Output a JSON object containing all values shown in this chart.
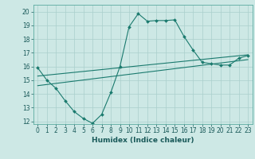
{
  "xlabel": "Humidex (Indice chaleur)",
  "xlim": [
    -0.5,
    23.5
  ],
  "ylim": [
    11.8,
    20.5
  ],
  "xticks": [
    0,
    1,
    2,
    3,
    4,
    5,
    6,
    7,
    8,
    9,
    10,
    11,
    12,
    13,
    14,
    15,
    16,
    17,
    18,
    19,
    20,
    21,
    22,
    23
  ],
  "yticks": [
    12,
    13,
    14,
    15,
    16,
    17,
    18,
    19,
    20
  ],
  "background_color": "#cde8e5",
  "grid_color": "#aacfcc",
  "line_color": "#1a7a6e",
  "line1_x": [
    0,
    1,
    2,
    3,
    4,
    5,
    6,
    7,
    8,
    9,
    10,
    11,
    12,
    13,
    14,
    15,
    16,
    17,
    18,
    19,
    20,
    21,
    22,
    23
  ],
  "line1_y": [
    15.9,
    15.0,
    14.4,
    13.5,
    12.7,
    12.2,
    11.85,
    12.5,
    14.1,
    16.0,
    18.9,
    19.85,
    19.3,
    19.35,
    19.35,
    19.4,
    18.2,
    17.2,
    16.3,
    16.2,
    16.1,
    16.1,
    16.6,
    16.8
  ],
  "line2_x": [
    0,
    23
  ],
  "line2_y": [
    14.6,
    16.5
  ],
  "line3_x": [
    0,
    23
  ],
  "line3_y": [
    15.3,
    16.85
  ],
  "marker_x": [
    0,
    1,
    2,
    3,
    4,
    5,
    6,
    7,
    8,
    9,
    10,
    11,
    12,
    13,
    14,
    15,
    16,
    17,
    18,
    19,
    20,
    21,
    22,
    23
  ],
  "marker_y": [
    15.9,
    15.0,
    14.4,
    13.5,
    12.7,
    12.2,
    11.85,
    12.5,
    14.1,
    16.0,
    18.9,
    19.85,
    19.3,
    19.35,
    19.35,
    19.4,
    18.2,
    17.2,
    16.3,
    16.2,
    16.1,
    16.1,
    16.6,
    16.8
  ],
  "tick_fontsize": 5.5,
  "xlabel_fontsize": 6.5
}
